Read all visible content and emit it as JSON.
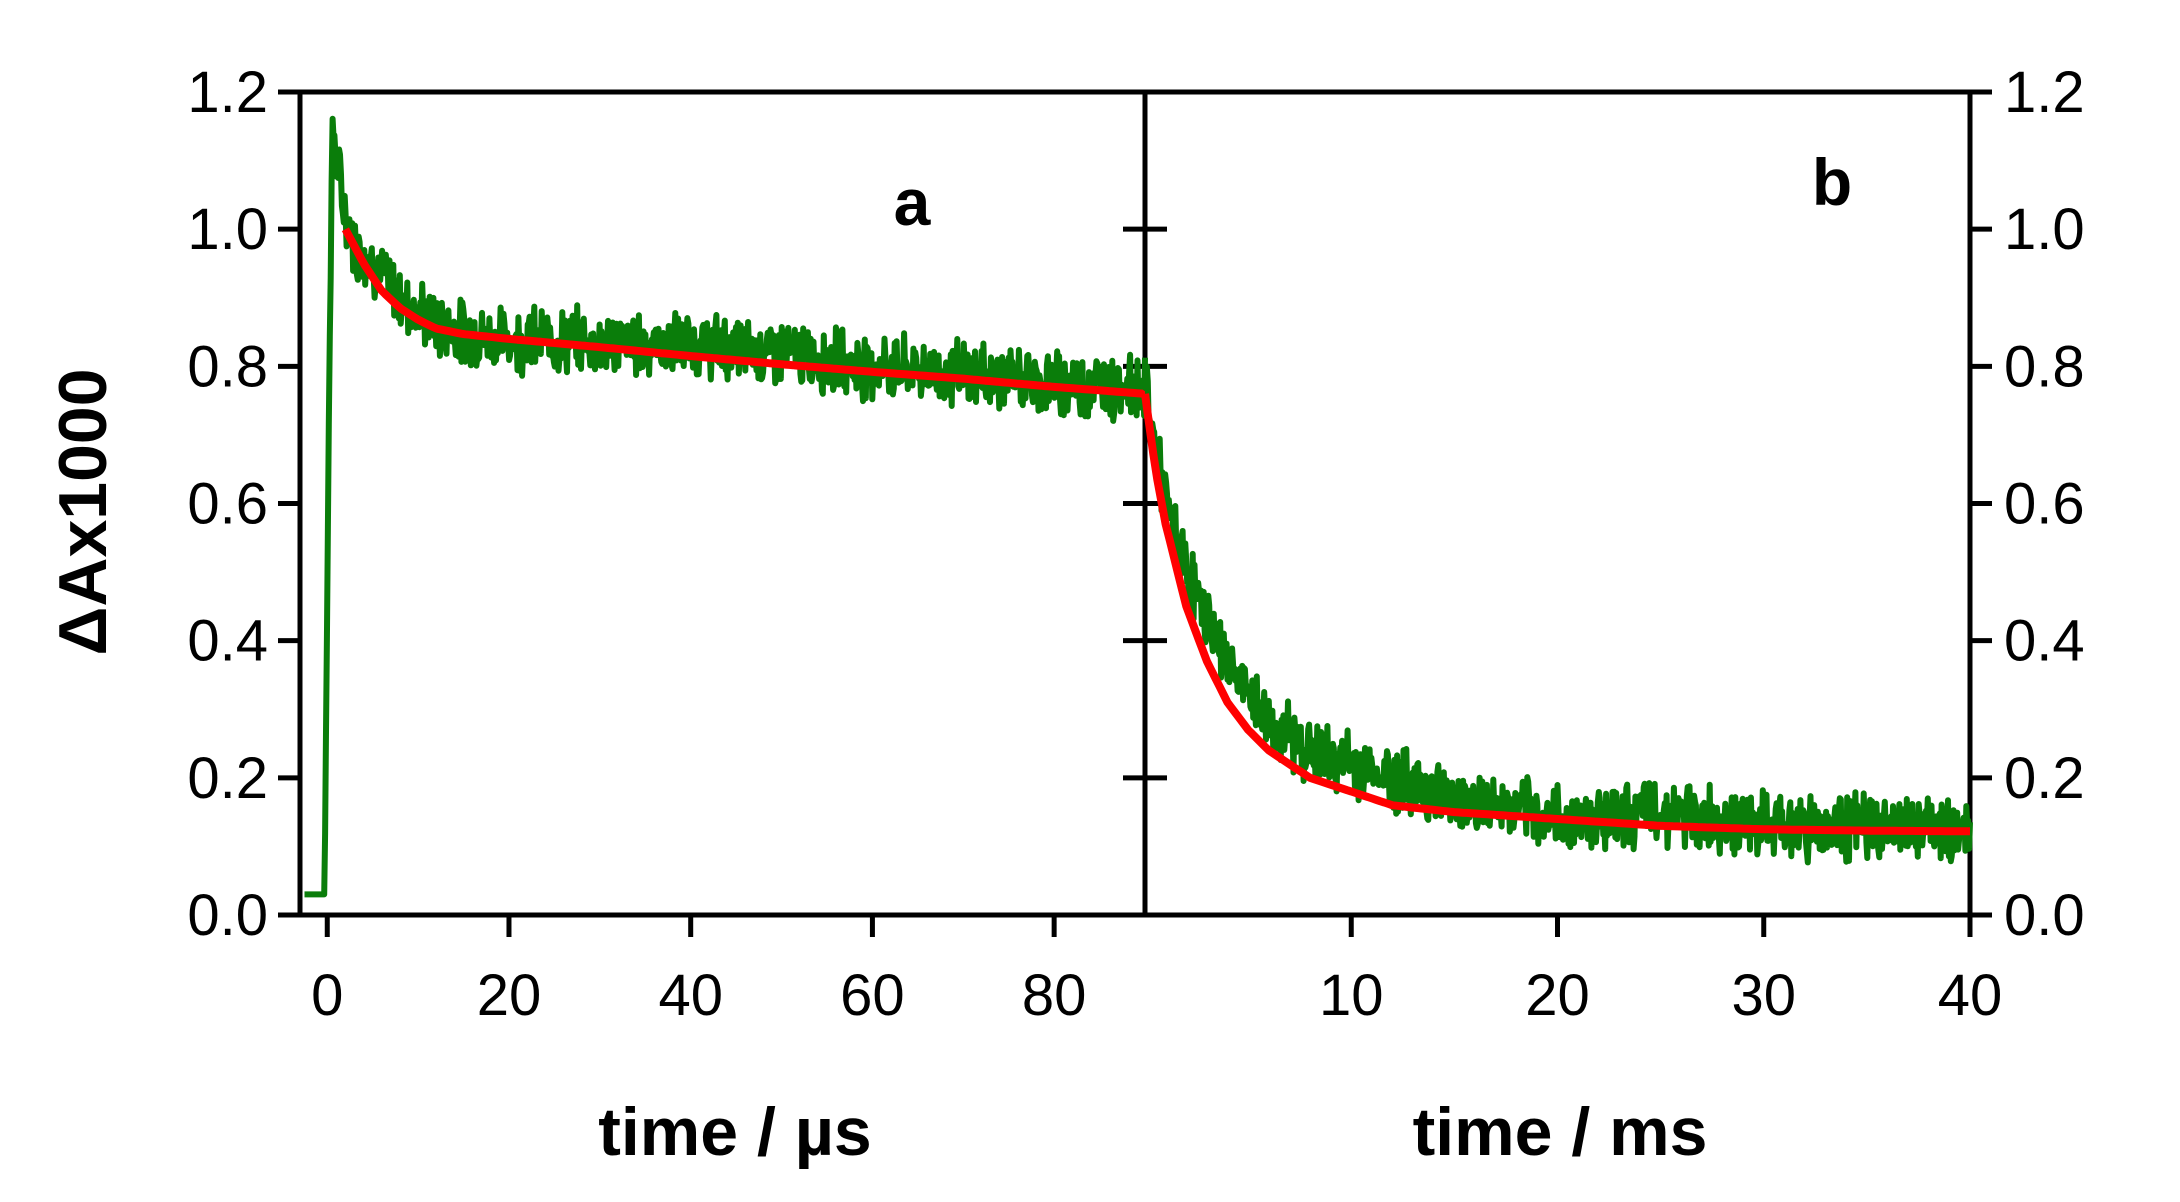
{
  "chart_data": [
    {
      "panel": "a",
      "type": "line",
      "xlabel": "time / µs",
      "ylabel": "ΔAx1000",
      "xlim": [
        -3,
        90
      ],
      "ylim": [
        0,
        1.2
      ],
      "x_ticks": [
        0,
        20,
        40,
        60,
        80
      ],
      "x_tick_labels": [
        "0",
        "20",
        "40",
        "60",
        "80"
      ],
      "y_ticks": [
        0,
        0.2,
        0.4,
        0.6,
        0.8,
        1.0,
        1.2
      ],
      "y_tick_labels": [
        "0.0",
        "0.2",
        "0.4",
        "0.6",
        "0.8",
        "1.0",
        "1.2"
      ],
      "grid": false,
      "series": [
        {
          "color": "#0a7d0a",
          "style": "noisy-data",
          "x": [
            -2.5,
            -1,
            -0.3,
            0.3,
            0.6,
            1.2,
            2,
            3,
            5,
            8,
            12,
            16,
            20,
            30,
            40,
            50,
            60,
            70,
            80,
            90
          ],
          "y": [
            0.03,
            0.03,
            0.03,
            0.9,
            1.15,
            1.08,
            1.02,
            0.98,
            0.95,
            0.9,
            0.86,
            0.845,
            0.84,
            0.835,
            0.83,
            0.82,
            0.8,
            0.79,
            0.775,
            0.77
          ]
        },
        {
          "color": "#ff0000",
          "style": "fit",
          "x": [
            2,
            4,
            6,
            8,
            10,
            12,
            15,
            20,
            30,
            40,
            50,
            60,
            70,
            80,
            90
          ],
          "y": [
            1.0,
            0.95,
            0.91,
            0.885,
            0.868,
            0.855,
            0.847,
            0.84,
            0.828,
            0.815,
            0.803,
            0.792,
            0.782,
            0.77,
            0.76
          ]
        }
      ],
      "annotations": [
        "a"
      ]
    },
    {
      "panel": "b",
      "type": "line",
      "xlabel": "time / ms",
      "ylabel": "",
      "xlim": [
        0,
        40
      ],
      "ylim": [
        0,
        1.2
      ],
      "x_ticks": [
        10,
        20,
        30,
        40
      ],
      "x_tick_labels": [
        "10",
        "20",
        "30",
        "40"
      ],
      "y_ticks": [
        0,
        0.2,
        0.4,
        0.6,
        0.8,
        1.0,
        1.2
      ],
      "y_tick_labels": [
        "0.0",
        "0.2",
        "0.4",
        "0.6",
        "0.8",
        "1.0",
        "1.2"
      ],
      "grid": false,
      "series": [
        {
          "color": "#0a7d0a",
          "style": "noisy-data",
          "x": [
            0,
            0.5,
            1,
            2,
            3,
            4,
            5,
            6,
            8,
            10,
            12,
            15,
            20,
            25,
            30,
            35,
            40
          ],
          "y": [
            0.78,
            0.68,
            0.6,
            0.5,
            0.43,
            0.37,
            0.32,
            0.28,
            0.24,
            0.22,
            0.2,
            0.17,
            0.14,
            0.15,
            0.13,
            0.13,
            0.12
          ]
        },
        {
          "color": "#ff0000",
          "style": "fit",
          "x": [
            0,
            0.5,
            1,
            2,
            3,
            4,
            5,
            6,
            8,
            10,
            12,
            15,
            20,
            25,
            30,
            35,
            40
          ],
          "y": [
            0.76,
            0.65,
            0.57,
            0.45,
            0.37,
            0.31,
            0.27,
            0.24,
            0.2,
            0.18,
            0.16,
            0.15,
            0.14,
            0.13,
            0.125,
            0.123,
            0.122
          ]
        }
      ],
      "annotations": [
        "b"
      ]
    }
  ]
}
